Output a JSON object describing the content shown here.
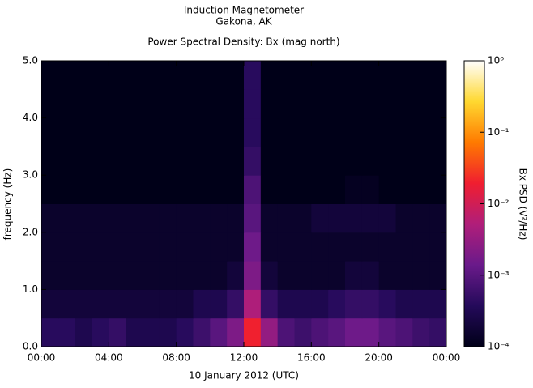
{
  "chart_data": {
    "type": "heatmap",
    "title": "Induction Magnetometer",
    "subtitle": "Gakona, AK",
    "plot_title": "Power Spectral Density: Bx (mag north)",
    "xlabel": "10 January 2012 (UTC)",
    "ylabel": "frequency (Hz)",
    "colorbar_label": "Bx PSD (V²/Hz)",
    "xbins": [
      0,
      1,
      2,
      3,
      4,
      5,
      6,
      7,
      8,
      9,
      10,
      11,
      12,
      13,
      14,
      15,
      16,
      17,
      18,
      19,
      20,
      21,
      22,
      23,
      24
    ],
    "ybins": [
      0,
      0.5,
      1,
      1.5,
      2,
      2.5,
      3,
      3.5,
      4,
      4.5,
      5
    ],
    "values": [
      [
        0.0004,
        0.0004,
        0.0003,
        0.0004,
        0.0005,
        0.0003,
        0.0003,
        0.0003,
        0.0004,
        0.0006,
        0.001,
        0.002,
        0.02,
        0.003,
        0.0008,
        0.0006,
        0.0008,
        0.001,
        0.0015,
        0.0015,
        0.001,
        0.0008,
        0.0006,
        0.0005
      ],
      [
        0.0002,
        0.0002,
        0.0002,
        0.0002,
        0.0002,
        0.0002,
        0.0002,
        0.0002,
        0.0002,
        0.0003,
        0.0003,
        0.0005,
        0.005,
        0.0005,
        0.0003,
        0.0003,
        0.0003,
        0.0004,
        0.0005,
        0.0005,
        0.0004,
        0.0003,
        0.0003,
        0.0003
      ],
      [
        0.00015,
        0.00015,
        0.00015,
        0.00015,
        0.00015,
        0.00015,
        0.00015,
        0.00015,
        0.00015,
        0.00015,
        0.00015,
        0.0002,
        0.002,
        0.0002,
        0.00015,
        0.00015,
        0.00015,
        0.00015,
        0.0002,
        0.0002,
        0.00015,
        0.00015,
        0.00015,
        0.00015
      ],
      [
        0.00015,
        0.00015,
        0.00015,
        0.00015,
        0.00015,
        0.00015,
        0.00015,
        0.00015,
        0.00015,
        0.00015,
        0.00015,
        0.00015,
        0.0015,
        0.00015,
        0.00015,
        0.00015,
        0.00015,
        0.00015,
        0.00015,
        0.00015,
        0.00015,
        0.00015,
        0.00015,
        0.00015
      ],
      [
        0.00015,
        0.00015,
        0.00015,
        0.00015,
        0.00015,
        0.00015,
        0.00015,
        0.00015,
        0.00015,
        0.00015,
        0.00015,
        0.00015,
        0.001,
        0.00015,
        0.00015,
        0.00015,
        0.0002,
        0.0002,
        0.0002,
        0.0002,
        0.0002,
        0.00015,
        0.00015,
        0.00015
      ],
      [
        0.0001,
        0.0001,
        0.0001,
        0.0001,
        0.0001,
        0.0001,
        0.0001,
        0.0001,
        0.0001,
        0.0001,
        0.0001,
        0.0001,
        0.0008,
        0.0001,
        0.0001,
        0.0001,
        0.0001,
        0.0001,
        0.00012,
        0.00012,
        0.0001,
        0.0001,
        0.0001,
        0.0001
      ],
      [
        5e-05,
        5e-05,
        5e-05,
        5e-05,
        5e-05,
        5e-05,
        5e-05,
        5e-05,
        5e-05,
        5e-05,
        5e-05,
        5e-05,
        0.0005,
        5e-05,
        0.0001,
        0.0001,
        0.0001,
        0.0001,
        0.0001,
        0.0001,
        0.0001,
        0.0001,
        0.0001,
        5e-05
      ],
      [
        3e-05,
        3e-05,
        3e-05,
        3e-05,
        3e-05,
        3e-05,
        3e-05,
        3e-05,
        3e-05,
        3e-05,
        3e-05,
        3e-05,
        0.0004,
        3e-05,
        3e-05,
        3e-05,
        3e-05,
        3e-05,
        3e-05,
        3e-05,
        3e-05,
        3e-05,
        3e-05,
        3e-05
      ],
      [
        3e-05,
        3e-05,
        3e-05,
        3e-05,
        3e-05,
        3e-05,
        3e-05,
        3e-05,
        3e-05,
        3e-05,
        3e-05,
        3e-05,
        0.0004,
        3e-05,
        3e-05,
        3e-05,
        3e-05,
        3e-05,
        3e-05,
        3e-05,
        3e-05,
        3e-05,
        3e-05,
        3e-05
      ],
      [
        3e-05,
        3e-05,
        3e-05,
        3e-05,
        3e-05,
        3e-05,
        3e-05,
        3e-05,
        3e-05,
        3e-05,
        3e-05,
        3e-05,
        0.0004,
        3e-05,
        3e-05,
        3e-05,
        3e-05,
        3e-05,
        3e-05,
        3e-05,
        3e-05,
        3e-05,
        3e-05,
        3e-05
      ]
    ],
    "xlim": [
      0,
      24
    ],
    "xticks": [
      {
        "value": 0,
        "label": "00:00"
      },
      {
        "value": 4,
        "label": "04:00"
      },
      {
        "value": 8,
        "label": "08:00"
      },
      {
        "value": 12,
        "label": "12:00"
      },
      {
        "value": 16,
        "label": "16:00"
      },
      {
        "value": 20,
        "label": "20:00"
      },
      {
        "value": 24,
        "label": "00:00"
      }
    ],
    "ylim": [
      0,
      5
    ],
    "yticks": [
      {
        "value": 0,
        "label": "0.0"
      },
      {
        "value": 1,
        "label": "1.0"
      },
      {
        "value": 2,
        "label": "2.0"
      },
      {
        "value": 3,
        "label": "3.0"
      },
      {
        "value": 4,
        "label": "4.0"
      },
      {
        "value": 5,
        "label": "5.0"
      }
    ],
    "clim": [
      0.0001,
      1
    ],
    "clog": true,
    "cticks": [
      {
        "value": 0.0001,
        "label": "10⁻⁴"
      },
      {
        "value": 0.001,
        "label": "10⁻³"
      },
      {
        "value": 0.01,
        "label": "10⁻²"
      },
      {
        "value": 0.1,
        "label": "10⁻¹"
      },
      {
        "value": 1,
        "label": "10⁰"
      }
    ],
    "colormap": [
      "#000018",
      "#240a5a",
      "#6a1a8a",
      "#b01e7a",
      "#f01e30",
      "#ff7a00",
      "#ffd830",
      "#ffffff"
    ]
  }
}
